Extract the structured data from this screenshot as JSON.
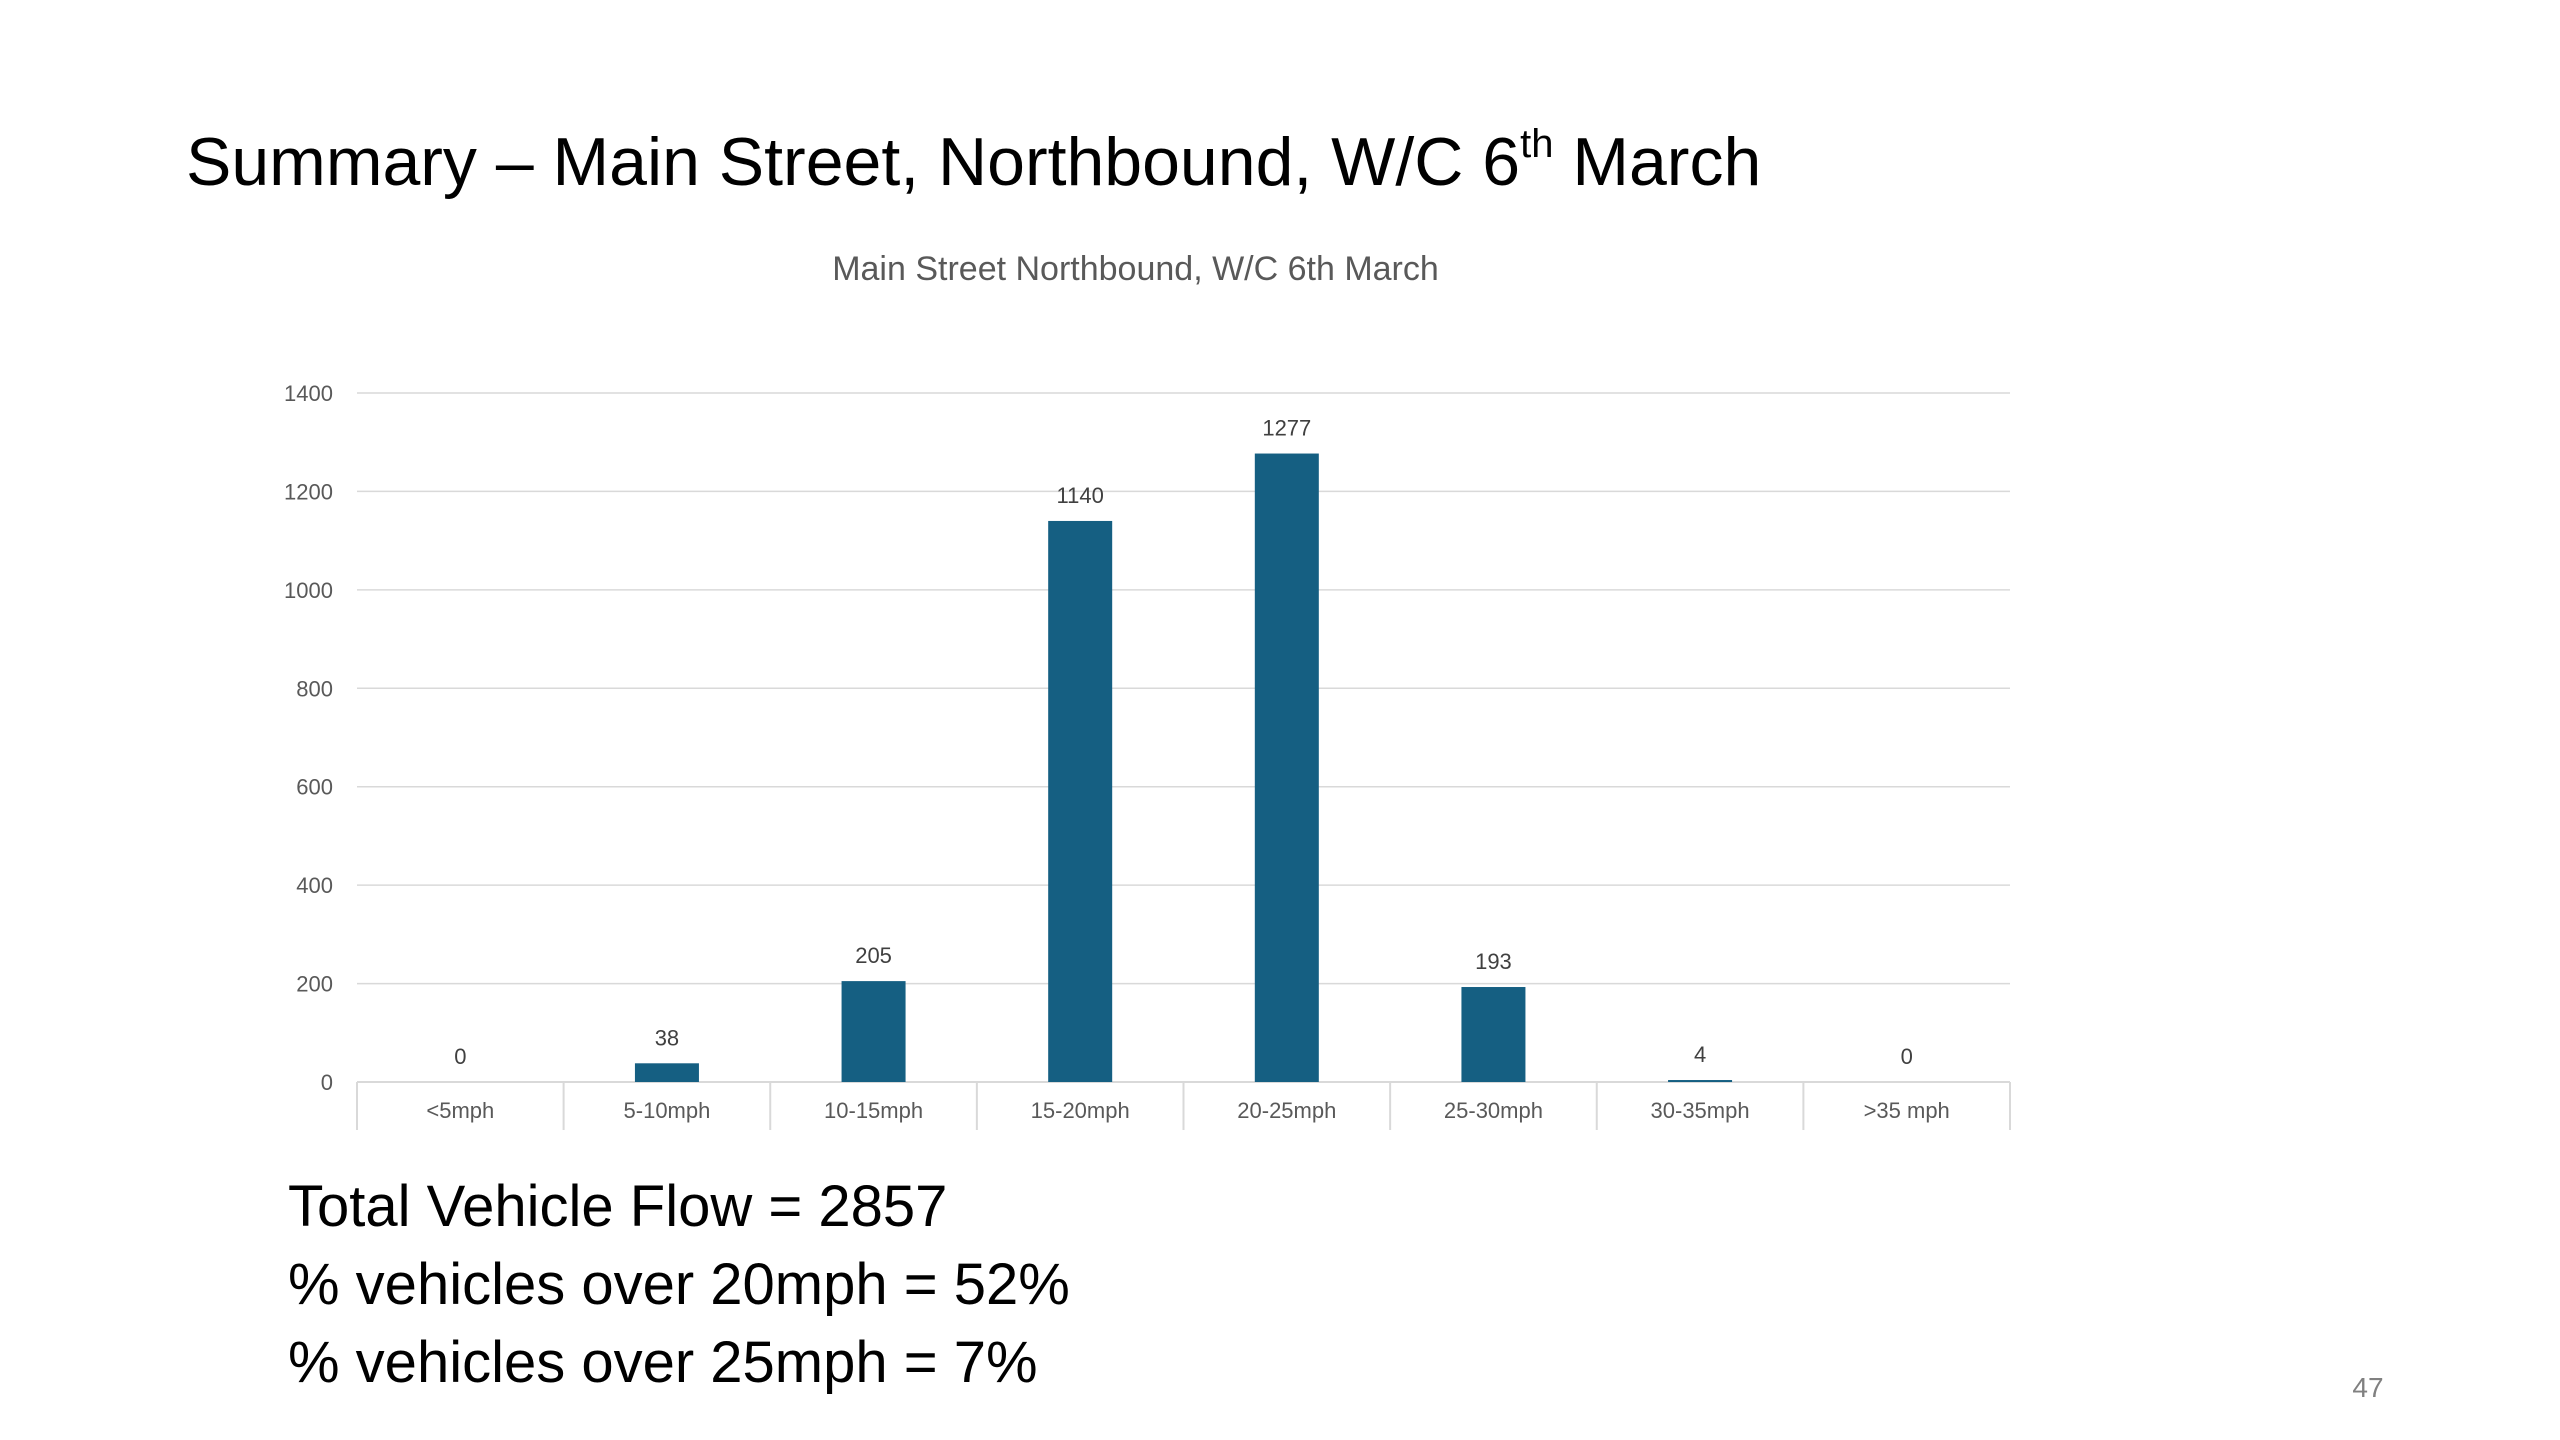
{
  "slide": {
    "title_main": "Summary – Main Street, Northbound, W/C 6",
    "title_sup": "th",
    "title_end": " March",
    "summary_lines": [
      "Total Vehicle Flow = 2857",
      "% vehicles over 20mph = 52%",
      "% vehicles over 25mph = 7%"
    ],
    "page_number": "47"
  },
  "chart_data": {
    "type": "bar",
    "title": "Main Street Northbound, W/C 6th March",
    "xlabel": "",
    "ylabel": "",
    "categories": [
      "<5mph",
      "5-10mph",
      "10-15mph",
      "15-20mph",
      "20-25mph",
      "25-30mph",
      "30-35mph",
      ">35 mph"
    ],
    "values": [
      0,
      38,
      205,
      1140,
      1277,
      193,
      4,
      0
    ],
    "data_labels": [
      "0",
      "38",
      "205",
      "1140",
      "1277",
      "193",
      "4",
      "0"
    ],
    "ylim": [
      0,
      1400
    ],
    "yticks": [
      0,
      200,
      400,
      600,
      800,
      1000,
      1200,
      1400
    ],
    "grid": true,
    "legend": "none",
    "bar_color": "#155f82"
  }
}
